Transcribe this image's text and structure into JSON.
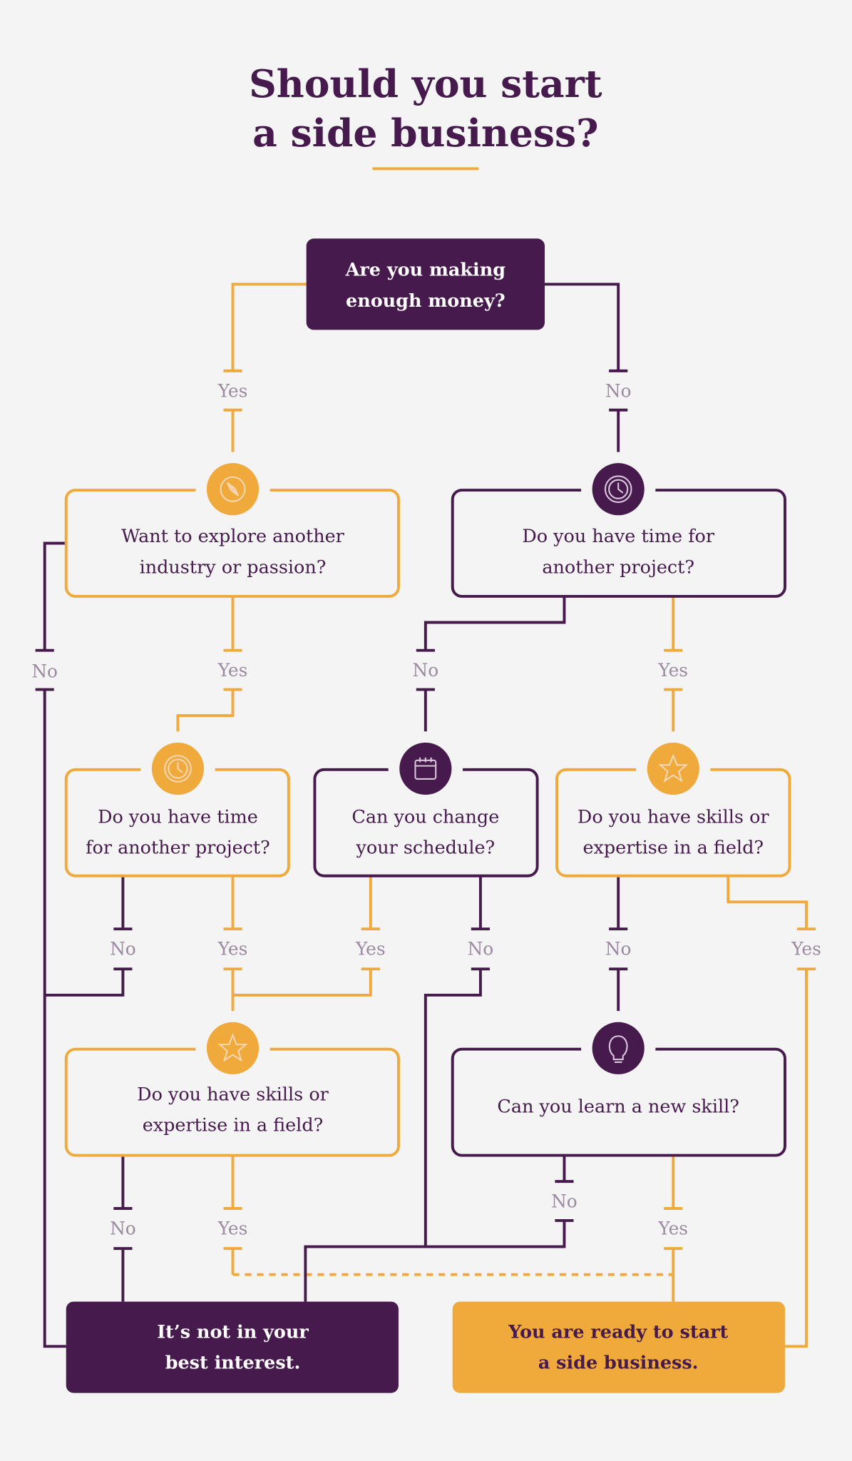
{
  "title": {
    "lines": [
      "Should you start",
      "a side business?"
    ]
  },
  "colors": {
    "purple": "#461a4d",
    "orange": "#f0a93b",
    "background": "#f3f4f3",
    "label": "#9b8aa0"
  },
  "nodes": {
    "start": {
      "lines": [
        "Are you making",
        "enough money?"
      ]
    },
    "explore": {
      "lines": [
        "Want to explore another",
        "industry or passion?"
      ],
      "icon": "compass-icon"
    },
    "time_right": {
      "lines": [
        "Do you have time for",
        "another project?"
      ],
      "icon": "clock-icon"
    },
    "time_left": {
      "lines": [
        "Do you have time",
        "for another project?"
      ],
      "icon": "clock-icon"
    },
    "schedule": {
      "lines": [
        "Can you change",
        "your schedule?"
      ],
      "icon": "calendar-icon"
    },
    "skills_right": {
      "lines": [
        "Do you have skills or",
        "expertise in a field?"
      ],
      "icon": "star-icon"
    },
    "skills_left": {
      "lines": [
        "Do you have skills or",
        "expertise in a field?"
      ],
      "icon": "star-icon"
    },
    "learn": {
      "lines": [
        "Can you learn a new skill?"
      ],
      "icon": "lightbulb-icon"
    },
    "not_interest": {
      "lines": [
        "It’s not in your",
        "best interest."
      ]
    },
    "ready": {
      "lines": [
        "You are ready to start",
        "a side business."
      ]
    }
  },
  "labels": {
    "yes": "Yes",
    "no": "No"
  }
}
